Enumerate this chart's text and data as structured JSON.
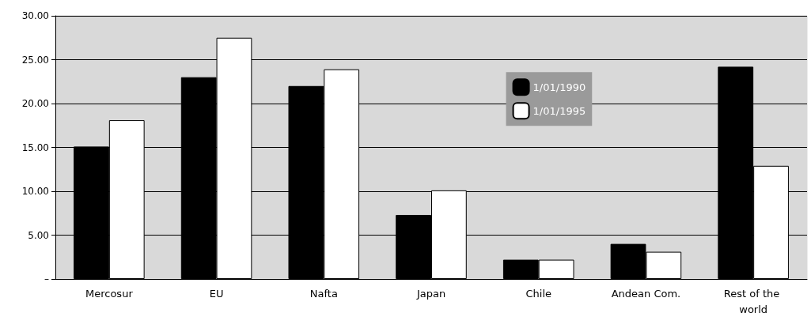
{
  "chart_data": {
    "type": "bar",
    "categories": [
      "Mercosur",
      "EU",
      "Nafta",
      "Japan",
      "Chile",
      "Andean Com.",
      "Rest of the world"
    ],
    "series": [
      {
        "name": "1/01/1990",
        "color": "#000000",
        "values": [
          15.1,
          23.0,
          22.0,
          7.3,
          2.2,
          4.0,
          24.2
        ]
      },
      {
        "name": "1/01/1995",
        "color": "#ffffff",
        "values": [
          18.1,
          27.5,
          23.9,
          10.1,
          2.2,
          3.1,
          12.9
        ]
      }
    ],
    "ylim": [
      0,
      30
    ],
    "yticks": [
      {
        "value": 0,
        "label": "–"
      },
      {
        "value": 5,
        "label": "5.00"
      },
      {
        "value": 10,
        "label": "10.00"
      },
      {
        "value": 15,
        "label": "15.00"
      },
      {
        "value": 20,
        "label": "20.00"
      },
      {
        "value": 25,
        "label": "25.00"
      },
      {
        "value": 30,
        "label": "30.00"
      }
    ],
    "grid": "y",
    "legend": "top right"
  }
}
